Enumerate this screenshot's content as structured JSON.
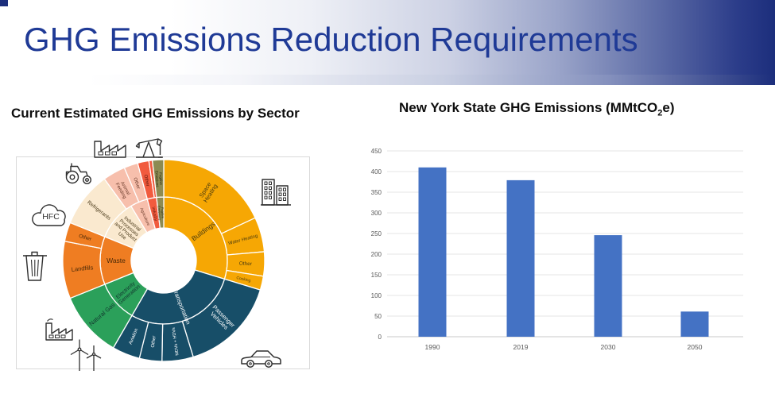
{
  "header": {
    "title": "GHG Emissions Reduction Requirements",
    "title_color": "#1F3A96",
    "banner_dark_color": "#1c2e7c"
  },
  "left_panel": {
    "title": "Current Estimated GHG Emissions by Sector",
    "hfc_label": "HFC",
    "icons": [
      "factory-icon",
      "oil-pumpjack-icon",
      "tractor-icon",
      "city-buildings-icon",
      "hfc-cloud-icon",
      "trash-can-icon",
      "smokestack-factory-icon",
      "wind-turbines-icon",
      "car-icon"
    ]
  },
  "right_panel": {
    "title_pre": "New York State GHG Emissions (MMtCO",
    "title_sub": "2",
    "title_post": "e)"
  },
  "chart_data": [
    {
      "type": "pie",
      "subtype": "sunburst",
      "title": "Current Estimated GHG Emissions by Sector",
      "legend": "none",
      "colors": {
        "buildings": "#F6A704",
        "transportation": "#174E68",
        "electricity": "#2BA05A",
        "waste": "#EF7D22",
        "industrial": "#FAE9CF",
        "agriculture": "#F7BFAC",
        "industry": "#F15B3E",
        "fugitive": "#8D8B52"
      },
      "inner_ring": [
        {
          "label": "Buildings",
          "color": "#F6A704",
          "a0": 0,
          "a1": 107,
          "tc": "#4a3b10",
          "fs": 8.5,
          "lr": 62
        },
        {
          "label": "Transportation",
          "color": "#174E68",
          "a0": 107,
          "a1": 210,
          "tc": "#ffffff",
          "fs": 7.5,
          "lr": 62
        },
        {
          "label": "Electricity\nGeneration",
          "color": "#2BA05A",
          "a0": 210,
          "a1": 248,
          "tc": "#12352e",
          "fs": 6.8,
          "lr": 61
        },
        {
          "label": "Waste",
          "color": "#EF7D22",
          "a0": 248,
          "a1": 292,
          "tc": "#4a2a08",
          "fs": 8.5,
          "lr": 60
        },
        {
          "label": "Industrial\nProcesses\nand Product\nUse",
          "color": "#FAE9CF",
          "a0": 292,
          "a1": 329,
          "tc": "#4a3a1a",
          "fs": 6.3,
          "lr": 60
        },
        {
          "label": "Agriculture",
          "color": "#F7BFAC",
          "a0": 329,
          "a1": 345,
          "tc": "#6b3a2a",
          "fs": 5,
          "lr": 60
        },
        {
          "label": "Industry",
          "color": "#F15B3E",
          "a0": 345,
          "a1": 353.5,
          "tc": "#5a150a",
          "fs": 5,
          "lr": 60
        },
        {
          "label": "Fugitive\nEmissions",
          "color": "#8D8B52",
          "a0": 353.5,
          "a1": 360,
          "tc": "#26260f",
          "fs": 4,
          "lr": 60
        }
      ],
      "outer_ring": [
        {
          "label": "Space\nHeating",
          "color": "#F6A704",
          "a0": 0,
          "a1": 65,
          "tc": "#4a3b10",
          "fs": 7.5
        },
        {
          "label": "Water Heating",
          "color": "#F6A704",
          "a0": 65,
          "a1": 85,
          "tc": "#4a3b10",
          "fs": 6
        },
        {
          "label": "Other",
          "color": "#F6A704",
          "a0": 85,
          "a1": 99,
          "tc": "#4a3b10",
          "fs": 6.5
        },
        {
          "label": "Cooking",
          "color": "#F6A704",
          "a0": 99,
          "a1": 107,
          "tc": "#4a3b10",
          "fs": 5
        },
        {
          "label": "Passenger\nVehicles",
          "color": "#174E68",
          "a0": 107,
          "a1": 163,
          "tc": "#ffffff",
          "fs": 7.5
        },
        {
          "label": "MDVs + HDVs",
          "color": "#174E68",
          "a0": 163,
          "a1": 181,
          "tc": "#ffffff",
          "fs": 5.5
        },
        {
          "label": "Other",
          "color": "#174E68",
          "a0": 181,
          "a1": 194,
          "tc": "#ffffff",
          "fs": 6
        },
        {
          "label": "Aviation",
          "color": "#174E68",
          "a0": 194,
          "a1": 210,
          "tc": "#ffffff",
          "fs": 6
        },
        {
          "label": "Natural Gas",
          "color": "#2BA05A",
          "a0": 210,
          "a1": 248,
          "tc": "#12352e",
          "fs": 7.5
        },
        {
          "label": "Landfills",
          "color": "#EF7D22",
          "a0": 248,
          "a1": 281,
          "tc": "#4a2a08",
          "fs": 7.5
        },
        {
          "label": "Other",
          "color": "#EF7D22",
          "a0": 281,
          "a1": 292,
          "tc": "#4a2a08",
          "fs": 6.5
        },
        {
          "label": "Refrigerants",
          "color": "#FAE9CF",
          "a0": 292,
          "a1": 324,
          "tc": "#4a3a1a",
          "fs": 6.5
        },
        {
          "label": "Animal\nFeeding",
          "color": "#F7BFAC",
          "a0": 324,
          "a1": 337,
          "tc": "#6b3a2a",
          "fs": 6
        },
        {
          "label": "Other",
          "color": "#F7BFAC",
          "a0": 337,
          "a1": 345,
          "tc": "#6b3a2a",
          "fs": 6
        },
        {
          "label": "Other",
          "color": "#F15B3E",
          "a0": 345,
          "a1": 351.5,
          "tc": "#5a150a",
          "fs": 6
        },
        {
          "label": "",
          "color": "#F15B3E",
          "a0": 351.5,
          "a1": 353.5,
          "tc": "#5a150a",
          "fs": 5
        },
        {
          "label": "Fugitive\nEmissions",
          "color": "#8D8B52",
          "a0": 353.5,
          "a1": 360,
          "tc": "#26260f",
          "fs": 4.5
        }
      ]
    },
    {
      "type": "bar",
      "title": "New York State GHG Emissions (MMtCO2e)",
      "categories": [
        "1990",
        "2019",
        "2030",
        "2050"
      ],
      "values": [
        410,
        379,
        246,
        61
      ],
      "xlabel": "",
      "ylabel": "",
      "ylim": [
        0,
        450
      ],
      "ytick_step": 50,
      "grid": true,
      "legend": "none",
      "bar_color": "#4472C4",
      "tick_color": "#595959",
      "grid_color": "#E4E4E4",
      "axis_color": "#C9C9C9"
    }
  ]
}
